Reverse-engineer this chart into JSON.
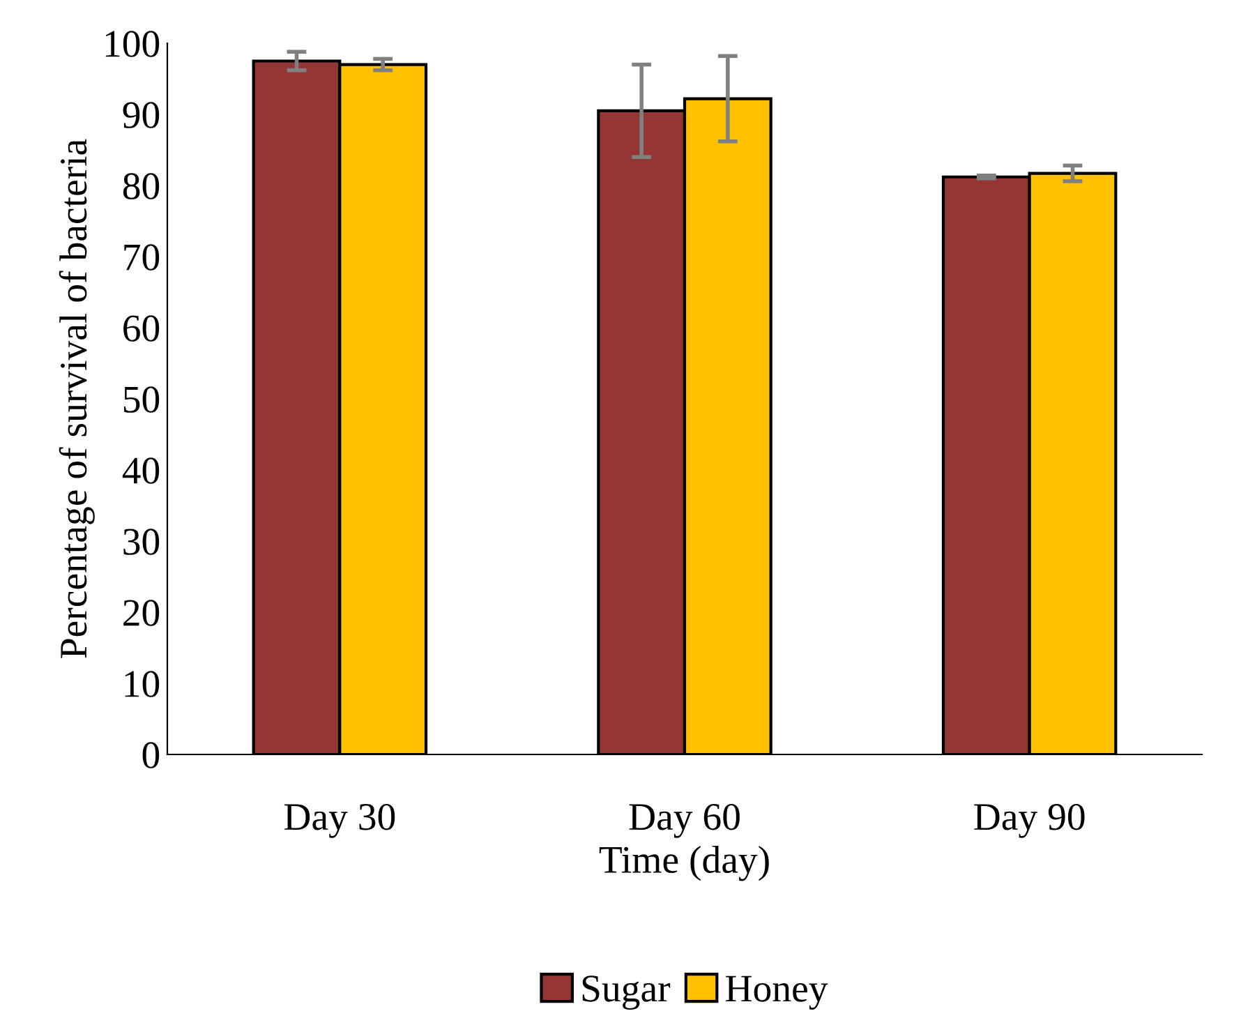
{
  "chart_data": {
    "type": "bar",
    "xlabel": "Time (day)",
    "ylabel": "Percentage of survival of bacteria",
    "categories": [
      "Day 30",
      "Day 60",
      "Day 90"
    ],
    "series": [
      {
        "name": "Sugar",
        "color": "#943634",
        "values": [
          97.5,
          90.5,
          81.2
        ],
        "errors": [
          1.3,
          6.5,
          0.2
        ]
      },
      {
        "name": "Honey",
        "color": "#ffc000",
        "values": [
          97.0,
          92.2,
          81.7
        ],
        "errors": [
          0.8,
          6.0,
          1.1
        ]
      }
    ],
    "ylim": [
      0,
      100
    ],
    "yticks": [
      0,
      10,
      20,
      30,
      40,
      50,
      60,
      70,
      80,
      90,
      100
    ],
    "grid": false,
    "legend": "bottom"
  }
}
